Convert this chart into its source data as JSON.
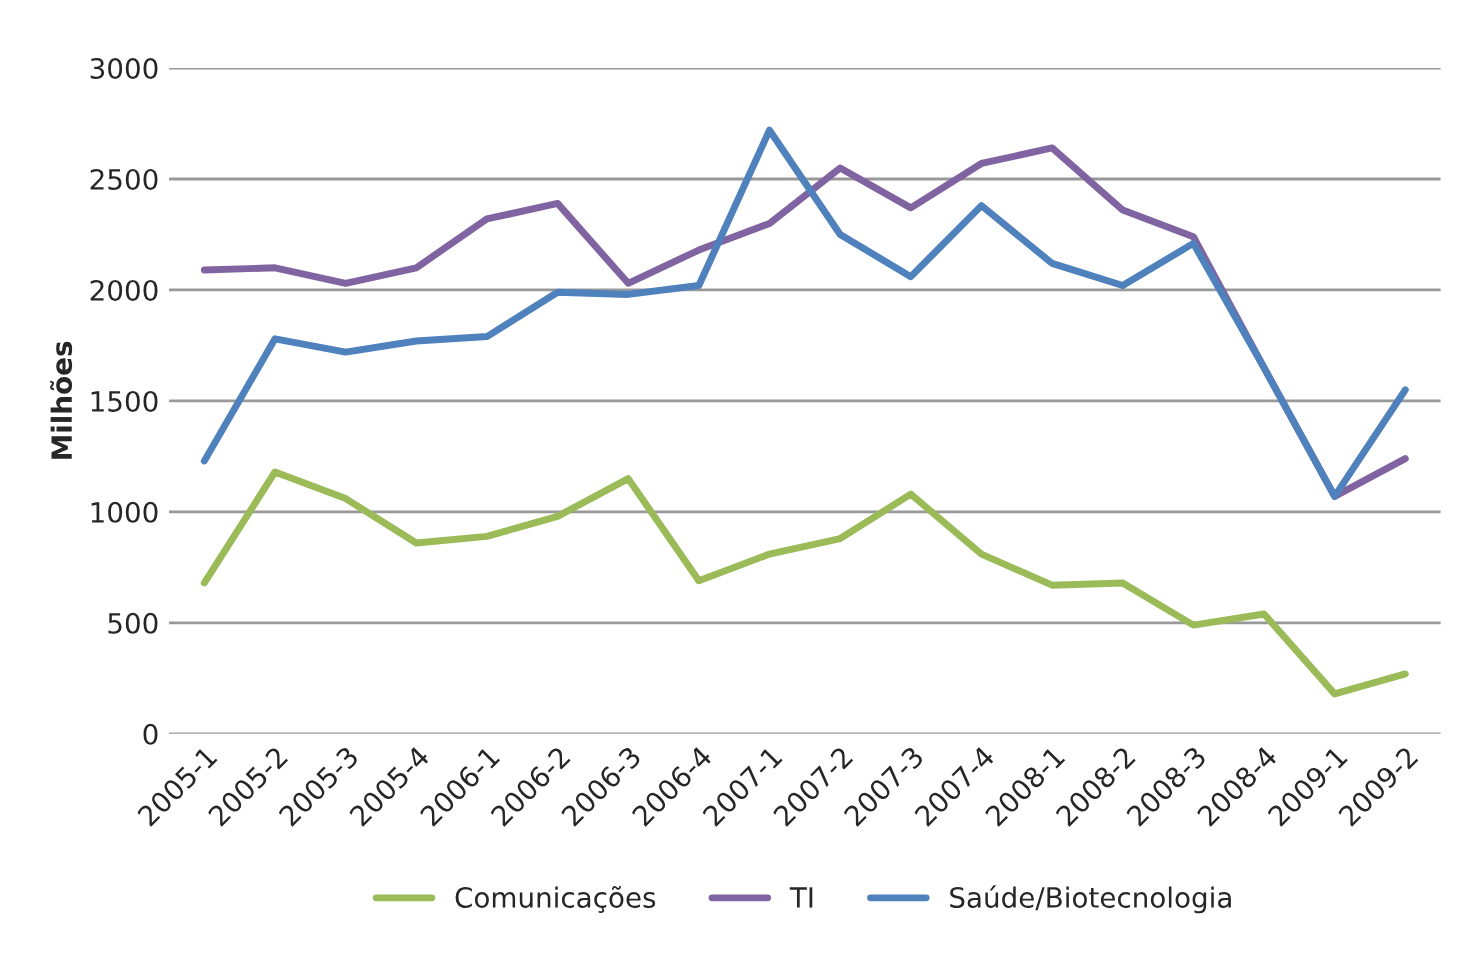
{
  "chart_data": {
    "type": "line",
    "ylabel": "Milhões",
    "categories": [
      "2005-1",
      "2005-2",
      "2005-3",
      "2005-4",
      "2006-1",
      "2006-2",
      "2006-3",
      "2006-4",
      "2007-1",
      "2007-2",
      "2007-3",
      "2007-4",
      "2008-1",
      "2008-2",
      "2008-3",
      "2008-4",
      "2009-1",
      "2009-2"
    ],
    "series": [
      {
        "name": "Comunicações",
        "color": "#9bbb59",
        "values": [
          680,
          1180,
          1060,
          860,
          890,
          980,
          1150,
          690,
          810,
          880,
          1080,
          810,
          670,
          680,
          490,
          540,
          180,
          270
        ]
      },
      {
        "name": "TI",
        "color": "#8064a2",
        "values": [
          2090,
          2100,
          2030,
          2100,
          2320,
          2390,
          2030,
          2180,
          2300,
          2550,
          2370,
          2570,
          2640,
          2360,
          2240,
          1650,
          1070,
          1240
        ]
      },
      {
        "name": "Saúde/Biotecnologia",
        "color": "#4f81bd",
        "values": [
          1230,
          1780,
          1720,
          1770,
          1790,
          1990,
          1980,
          2020,
          2720,
          2250,
          2060,
          2380,
          2120,
          2020,
          2210,
          1650,
          1070,
          1550
        ]
      }
    ],
    "ylim": [
      0,
      3000
    ],
    "yticks": [
      0,
      500,
      1000,
      1500,
      2000,
      2500,
      3000
    ],
    "grid": "y",
    "legend": "bottom",
    "marker": "none",
    "line_style": "solid"
  }
}
